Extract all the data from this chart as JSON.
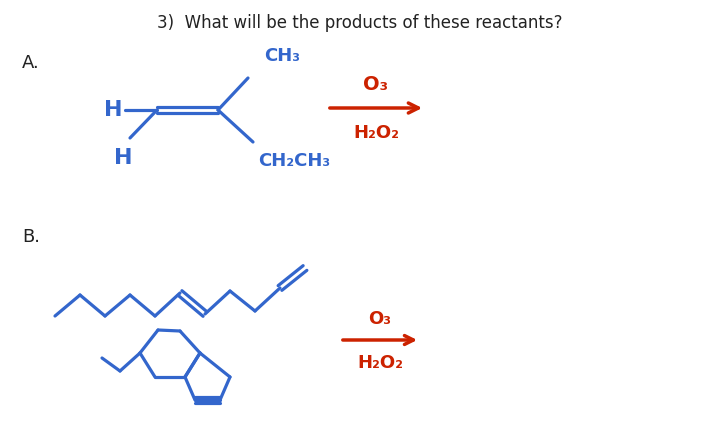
{
  "title": "3)  What will be the products of these reactants?",
  "label_A": "A.",
  "label_B": "B.",
  "blue": "#3366cc",
  "red": "#cc2200",
  "black": "#222222",
  "bg": "#ffffff"
}
